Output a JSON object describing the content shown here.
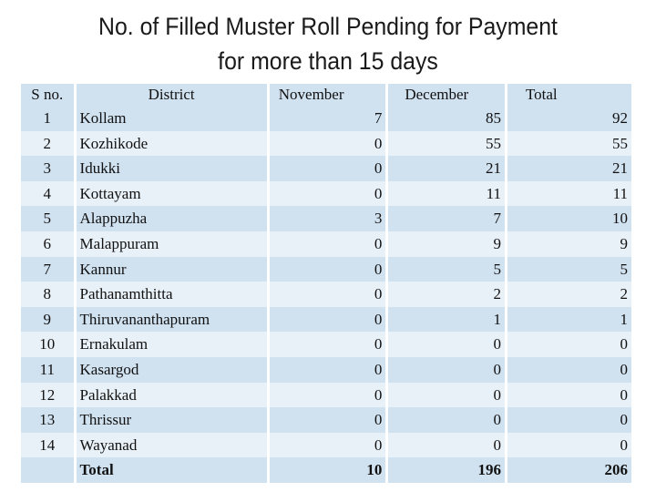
{
  "title": {
    "line1": "No. of Filled Muster Roll Pending for Payment",
    "line2": "for more than 15 days"
  },
  "table": {
    "headers": {
      "sno": "S no.",
      "district": "District",
      "november": "November",
      "december": "December",
      "total": "Total"
    },
    "rows": [
      {
        "sno": "1",
        "district": "Kollam",
        "november": "7",
        "december": "85",
        "total": "92"
      },
      {
        "sno": "2",
        "district": "Kozhikode",
        "november": "0",
        "december": "55",
        "total": "55"
      },
      {
        "sno": "3",
        "district": "Idukki",
        "november": "0",
        "december": "21",
        "total": "21"
      },
      {
        "sno": "4",
        "district": "Kottayam",
        "november": "0",
        "december": "11",
        "total": "11"
      },
      {
        "sno": "5",
        "district": "Alappuzha",
        "november": "3",
        "december": "7",
        "total": "10"
      },
      {
        "sno": "6",
        "district": "Malappuram",
        "november": "0",
        "december": "9",
        "total": "9"
      },
      {
        "sno": "7",
        "district": "Kannur",
        "november": "0",
        "december": "5",
        "total": "5"
      },
      {
        "sno": "8",
        "district": "Pathanamthitta",
        "november": "0",
        "december": "2",
        "total": "2"
      },
      {
        "sno": "9",
        "district": "Thiruvananthapuram",
        "november": "0",
        "december": "1",
        "total": "1"
      },
      {
        "sno": "10",
        "district": "Ernakulam",
        "november": "0",
        "december": "0",
        "total": "0"
      },
      {
        "sno": "11",
        "district": "Kasargod",
        "november": "0",
        "december": "0",
        "total": "0"
      },
      {
        "sno": "12",
        "district": "Palakkad",
        "november": "0",
        "december": "0",
        "total": "0"
      },
      {
        "sno": "13",
        "district": "Thrissur",
        "november": "0",
        "december": "0",
        "total": "0"
      },
      {
        "sno": "14",
        "district": "Wayanad",
        "november": "0",
        "december": "0",
        "total": "0"
      }
    ],
    "totals": {
      "label": "Total",
      "november": "10",
      "december": "196",
      "total": "206"
    }
  },
  "colors": {
    "row_dark": "#d0e1f0",
    "row_light": "#e9f1f8",
    "text": "#111111"
  }
}
